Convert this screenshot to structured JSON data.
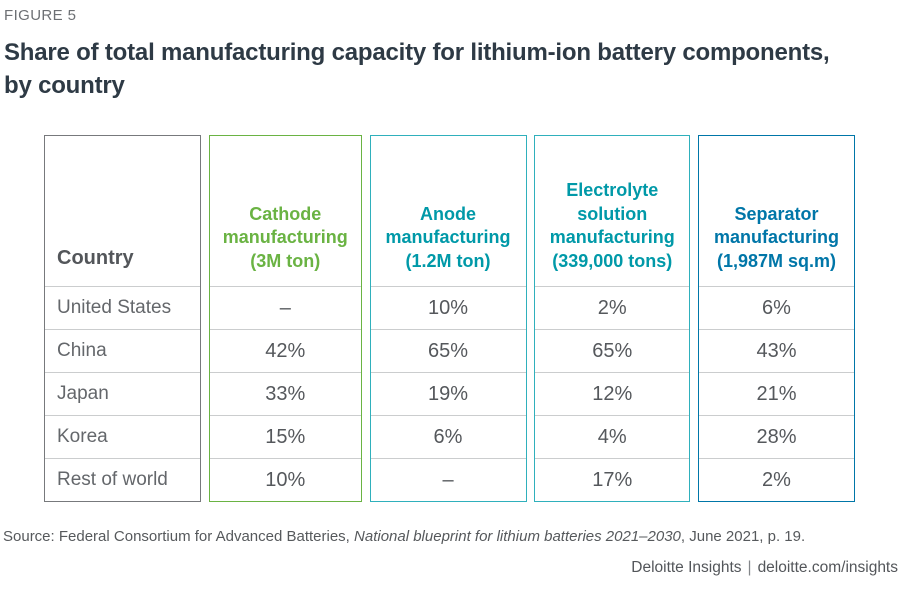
{
  "figure_label": "FIGURE 5",
  "title": {
    "line1": "Share of total manufacturing capacity for lithium-ion battery components,",
    "line2": "by country"
  },
  "table": {
    "country_header": "Country",
    "columns": [
      {
        "key": "cathode",
        "label": "Cathode manufacturing (3M ton)",
        "color": "#6ab343"
      },
      {
        "key": "anode",
        "label": "Anode manufacturing (1.2M ton)",
        "color": "#0099a8"
      },
      {
        "key": "electrolyte",
        "label": "Electrolyte solution manufacturing (339,000 tons)",
        "color": "#0099a8"
      },
      {
        "key": "separator",
        "label": "Separator manufacturing (1,987M sq.m)",
        "color": "#0076a8"
      }
    ],
    "rows": [
      {
        "country": "United States",
        "values": [
          "–",
          "10%",
          "2%",
          "6%"
        ]
      },
      {
        "country": "China",
        "values": [
          "42%",
          "65%",
          "65%",
          "43%"
        ]
      },
      {
        "country": "Japan",
        "values": [
          "33%",
          "19%",
          "12%",
          "21%"
        ]
      },
      {
        "country": "Korea",
        "values": [
          "15%",
          "6%",
          "4%",
          "28%"
        ]
      },
      {
        "country": "Rest of world",
        "values": [
          "10%",
          "–",
          "17%",
          "2%"
        ]
      }
    ]
  },
  "source": {
    "prefix": "Source: Federal Consortium for Advanced Batteries, ",
    "italic_title": "National blueprint for lithium batteries 2021–2030",
    "suffix": ", June 2021, p. 19."
  },
  "footer": {
    "brand": "Deloitte Insights",
    "separator": "|",
    "link": "deloitte.com/insights"
  },
  "chart_data": {
    "type": "table",
    "title": "Share of total manufacturing capacity for lithium-ion battery components, by country",
    "figure_label": "FIGURE 5",
    "row_header": "Country",
    "columns": [
      "Cathode manufacturing (3M ton)",
      "Anode manufacturing (1.2M ton)",
      "Electrolyte solution manufacturing (339,000 tons)",
      "Separator manufacturing (1,987M sq.m)"
    ],
    "rows": [
      "United States",
      "China",
      "Japan",
      "Korea",
      "Rest of world"
    ],
    "values_percent": [
      [
        null,
        10,
        2,
        6
      ],
      [
        42,
        65,
        65,
        43
      ],
      [
        33,
        19,
        12,
        21
      ],
      [
        15,
        6,
        4,
        28
      ],
      [
        10,
        null,
        17,
        2
      ]
    ],
    "notes": "null = dash (no capacity shown)",
    "accent_colors": {
      "cathode": "#6ab343",
      "anode": "#0099a8",
      "electrolyte": "#0099a8",
      "separator": "#0076a8"
    }
  }
}
